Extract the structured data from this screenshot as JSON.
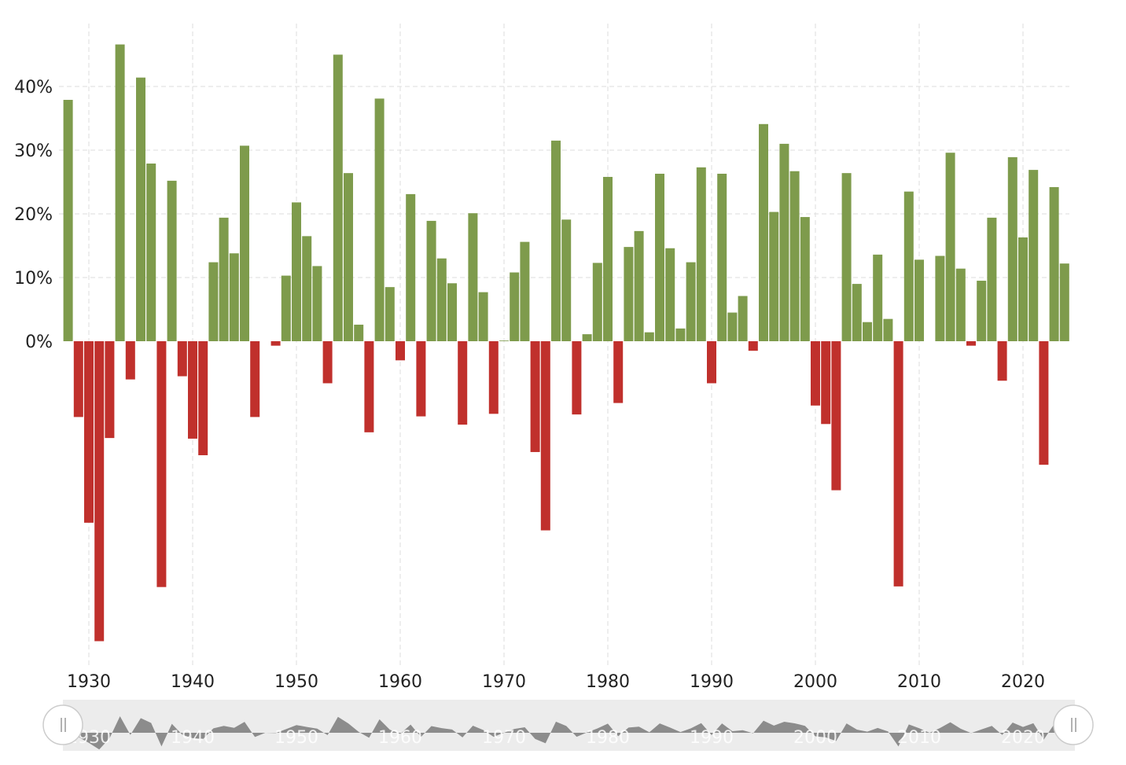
{
  "chart_data": {
    "type": "bar",
    "title": "",
    "xlabel": "",
    "ylabel": "",
    "ylim": [
      -48,
      48
    ],
    "yticks": [
      "0%",
      "10%",
      "20%",
      "30%",
      "40%"
    ],
    "ytick_values": [
      0,
      10,
      20,
      30,
      40
    ],
    "xticks": [
      "1930",
      "1940",
      "1950",
      "1960",
      "1970",
      "1980",
      "1990",
      "2000",
      "2010",
      "2020"
    ],
    "xtick_values": [
      1930,
      1940,
      1950,
      1960,
      1970,
      1980,
      1990,
      2000,
      2010,
      2020
    ],
    "grid": true,
    "colors": {
      "positive": "#7e9b4c",
      "negative": "#c0302c",
      "navigator": "#8c8c8c",
      "navigator_bg": "#ececec"
    },
    "x": [
      1928,
      1929,
      1930,
      1931,
      1932,
      1933,
      1934,
      1935,
      1936,
      1937,
      1938,
      1939,
      1940,
      1941,
      1942,
      1943,
      1944,
      1945,
      1946,
      1947,
      1948,
      1949,
      1950,
      1951,
      1952,
      1953,
      1954,
      1955,
      1956,
      1957,
      1958,
      1959,
      1960,
      1961,
      1962,
      1963,
      1964,
      1965,
      1966,
      1967,
      1968,
      1969,
      1970,
      1971,
      1972,
      1973,
      1974,
      1975,
      1976,
      1977,
      1978,
      1979,
      1980,
      1981,
      1982,
      1983,
      1984,
      1985,
      1986,
      1987,
      1988,
      1989,
      1990,
      1991,
      1992,
      1993,
      1994,
      1995,
      1996,
      1997,
      1998,
      1999,
      2000,
      2001,
      2002,
      2003,
      2004,
      2005,
      2006,
      2007,
      2008,
      2009,
      2010,
      2011,
      2012,
      2013,
      2014,
      2015,
      2016,
      2017,
      2018,
      2019,
      2020,
      2021,
      2022,
      2023,
      2024
    ],
    "values": [
      37.9,
      -11.9,
      -28.5,
      -47.1,
      -15.2,
      46.6,
      -6.0,
      41.4,
      27.9,
      -38.6,
      25.2,
      -5.5,
      -15.3,
      -17.9,
      12.4,
      19.4,
      13.8,
      30.7,
      -11.9,
      0.0,
      -0.7,
      10.3,
      21.8,
      16.5,
      11.8,
      -6.6,
      45.0,
      26.4,
      2.6,
      -14.3,
      38.1,
      8.5,
      -3.0,
      23.1,
      -11.8,
      18.9,
      13.0,
      9.1,
      -13.1,
      20.1,
      7.7,
      -11.4,
      0.1,
      10.8,
      15.6,
      -17.4,
      -29.7,
      31.5,
      19.1,
      -11.5,
      1.1,
      12.3,
      25.8,
      -9.7,
      14.8,
      17.3,
      1.4,
      26.3,
      14.6,
      2.0,
      12.4,
      27.3,
      -6.6,
      26.3,
      4.5,
      7.1,
      -1.5,
      34.1,
      20.3,
      31.0,
      26.7,
      19.5,
      -10.1,
      -13.0,
      -23.4,
      26.4,
      9.0,
      3.0,
      13.6,
      3.5,
      -38.5,
      23.5,
      12.8,
      0.0,
      13.4,
      29.6,
      11.4,
      -0.7,
      9.5,
      19.4,
      -6.2,
      28.9,
      16.3,
      26.9,
      -19.4,
      24.2,
      12.2
    ]
  }
}
